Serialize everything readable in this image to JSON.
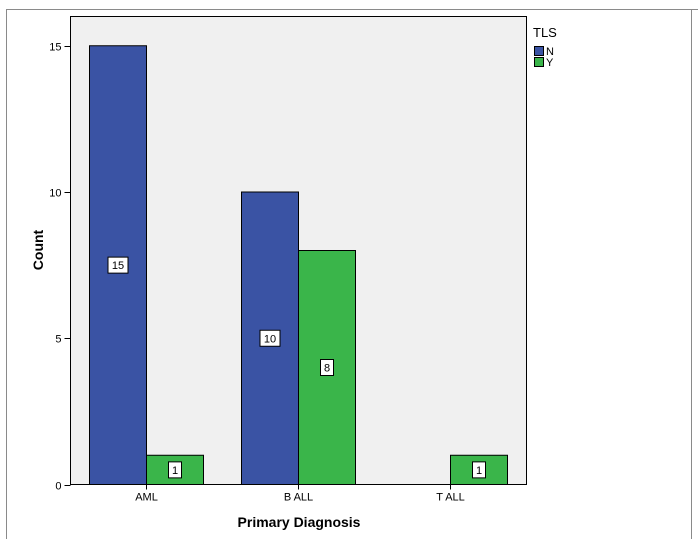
{
  "chart_data": {
    "type": "bar",
    "categories": [
      "AML",
      "B ALL",
      "T ALL"
    ],
    "series": [
      {
        "name": "N",
        "values": [
          15,
          10,
          0
        ],
        "color": "#3a53a4",
        "labels": [
          "15",
          "10",
          null
        ]
      },
      {
        "name": "Y",
        "values": [
          1,
          8,
          1
        ],
        "color": "#3ab54a",
        "labels": [
          "1",
          "8",
          "1"
        ]
      }
    ],
    "xlabel": "Primary Diagnosis",
    "ylabel": "Count",
    "ylim": [
      0,
      16
    ],
    "yticks": [
      0,
      5,
      10,
      15
    ],
    "legend": {
      "title": "TLS",
      "placement": "top-right"
    },
    "grid": false,
    "plot_background": "#f0f0f0"
  }
}
